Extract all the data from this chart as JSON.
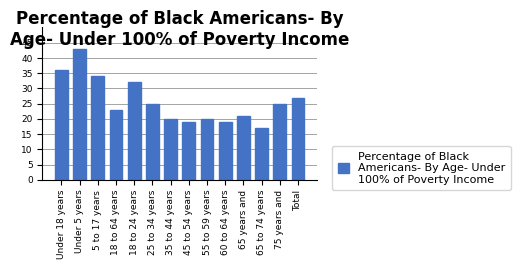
{
  "categories": [
    "Under 18 years",
    "Under 5 years",
    "5 to 17 years",
    "18 to 64 years",
    "18 to 24 years",
    "25 to 34 years",
    "35 to 44 years",
    "45 to 54 years",
    "55 to 59 years",
    "60 to 64 years",
    "65 years and",
    "65 to 74 years",
    "75 years and",
    "Total"
  ],
  "values": [
    36,
    43,
    34,
    23,
    32,
    25,
    20,
    19,
    20,
    19,
    21,
    17,
    25,
    27
  ],
  "bar_color": "#4472C4",
  "title_line1": "Percentage of Black Americans- By",
  "title_line2": "Age- Under 100% of Poverty Income",
  "legend_label": "Percentage of Black\nAmericans- By Age- Under\n100% of Poverty Income",
  "ylim": [
    0,
    50
  ],
  "yticks": [
    0,
    5,
    10,
    15,
    20,
    25,
    30,
    35,
    40,
    45
  ],
  "background_color": "#FFFFFF",
  "title_fontsize": 12,
  "tick_fontsize": 6.5,
  "legend_fontsize": 8
}
